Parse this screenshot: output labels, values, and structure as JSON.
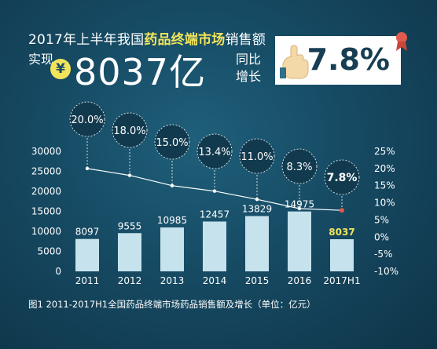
{
  "header": {
    "title_prefix": "2017年上半年我国",
    "title_highlight": "药品终端市场",
    "title_suffix": "销售额",
    "realize_label": "实现",
    "currency_symbol": "¥",
    "amount": "8037亿",
    "yoy_line1": "同比",
    "yoy_line2": "增长",
    "growth_value": "7.8%"
  },
  "caption": "图1  2011-2017H1全国药品终端市场药品销售额及增长（单位：亿元）",
  "colors": {
    "bar": "#c6e2ec",
    "line": "#ffffff",
    "bubble_fill": "#123a4e",
    "highlight_text": "#f2e45a",
    "bar_label": "#ffffff"
  },
  "chart_data": {
    "type": "bar",
    "categories": [
      "2011",
      "2012",
      "2013",
      "2014",
      "2015",
      "2016",
      "2017H1"
    ],
    "series": [
      {
        "values": [
          8097,
          9555,
          10985,
          12457,
          13829,
          14975,
          8037
        ],
        "axis": "left"
      },
      {
        "values": [
          20.0,
          18.0,
          15.0,
          13.4,
          11.0,
          8.3,
          7.8
        ],
        "axis": "right",
        "type": "line"
      }
    ],
    "bar_labels": [
      "8097",
      "9555",
      "10985",
      "12457",
      "13829",
      "14975",
      "8037"
    ],
    "growth_labels": [
      "20.0%",
      "18.0%",
      "15.0%",
      "13.4%",
      "11.0%",
      "8.3%",
      "7.8%"
    ],
    "left_ticks": [
      "0",
      "5000",
      "10000",
      "15000",
      "20000",
      "25000",
      "30000"
    ],
    "right_ticks": [
      "-10%",
      "-5%",
      "0%",
      "5%",
      "10%",
      "15%",
      "20%",
      "25%"
    ],
    "ylim": [
      0,
      30000
    ],
    "y2lim": [
      -10,
      25
    ],
    "grid": false,
    "title": "",
    "xlabel": "",
    "ylabel": ""
  }
}
